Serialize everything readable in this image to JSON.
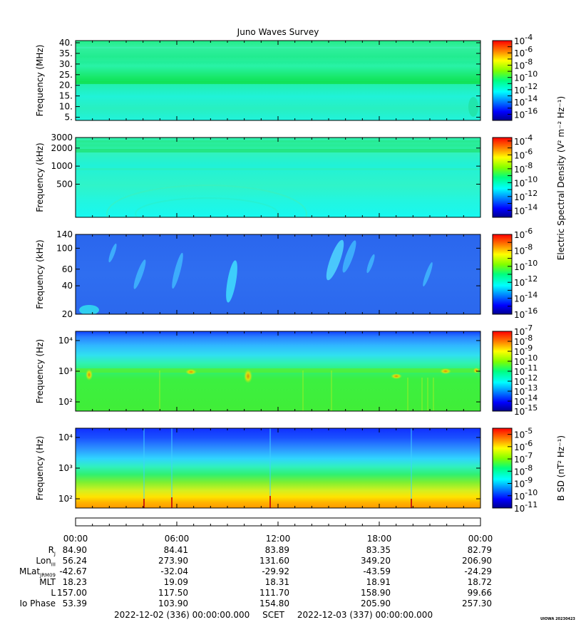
{
  "title": "Juno Waves Survey",
  "time_ticks": [
    "00:00",
    "06:00",
    "12:00",
    "18:00",
    "00:00"
  ],
  "ephemeris": {
    "labels": [
      {
        "main": "R",
        "sub": "J"
      },
      {
        "main": "Lon",
        "sub": "III"
      },
      {
        "main": "MLat",
        "sub": "JRM09"
      },
      {
        "main": "MLT",
        "sub": ""
      },
      {
        "main": "L",
        "sub": ""
      },
      {
        "main": "Io Phase",
        "sub": ""
      }
    ],
    "rows": [
      [
        "84.90",
        "84.41",
        "83.89",
        "83.35",
        "82.79"
      ],
      [
        "56.24",
        "273.90",
        "131.60",
        "349.20",
        "206.90"
      ],
      [
        "-42.67",
        "-32.04",
        "-29.92",
        "-43.59",
        "-24.29"
      ],
      [
        "18.23",
        "19.09",
        "18.31",
        "18.91",
        "18.72"
      ],
      [
        "157.00",
        "117.50",
        "111.70",
        "158.90",
        "99.66"
      ],
      [
        "53.39",
        "103.90",
        "154.80",
        "205.90",
        "257.30"
      ]
    ]
  },
  "footer": {
    "start": "2022-12-02 (336) 00:00:00.000",
    "scet": "SCET",
    "end": "2022-12-03 (337) 00:00:00.000"
  },
  "stamp": "UIOWA 20230423",
  "e_colorbar_label": "Electric Spectral Density",
  "e_colorbar_units": "(V² m⁻² Hz⁻¹)",
  "b_colorbar_label": "B SD",
  "b_colorbar_units": "(nT² Hz⁻¹)",
  "chart_data": [
    {
      "type": "heatmap",
      "name": "panel-hfr-high",
      "ylabel": "Frequency (MHz)",
      "y_scale": "linear",
      "ylim": [
        3.5,
        41
      ],
      "yticks": [
        5,
        10,
        15,
        20,
        25,
        30,
        35,
        40
      ],
      "ytick_labels": [
        "5.",
        "10.",
        "15.",
        "20.",
        "25.",
        "30.",
        "35.",
        "40."
      ],
      "colorbar": {
        "log10_range": [
          -17,
          -4
        ],
        "tick_exponents": [
          -16,
          -14,
          -12,
          -10,
          -8,
          -6,
          -4
        ]
      }
    },
    {
      "type": "heatmap",
      "name": "panel-hfr-low",
      "ylabel": "Frequency (kHz)",
      "y_scale": "log",
      "ylim": [
        140,
        3000
      ],
      "yticks": [
        500,
        1000,
        2000,
        3000
      ],
      "ytick_labels": [
        "500",
        "1000",
        "2000",
        "3000"
      ],
      "colorbar": {
        "log10_range": [
          -15,
          -3.5
        ],
        "tick_exponents": [
          -14,
          -12,
          -10,
          -8,
          -6,
          -4
        ]
      }
    },
    {
      "type": "heatmap",
      "name": "panel-lfr",
      "ylabel": "Frequency (kHz)",
      "y_scale": "log",
      "ylim": [
        20,
        140
      ],
      "yticks": [
        20,
        40,
        60,
        100,
        140
      ],
      "ytick_labels": [
        "20",
        "40",
        "60",
        "100",
        "140"
      ],
      "colorbar": {
        "log10_range": [
          -16,
          -6
        ],
        "tick_exponents": [
          -16,
          -14,
          -12,
          -10,
          -8,
          -6
        ]
      }
    },
    {
      "type": "heatmap",
      "name": "panel-e-lowfreq",
      "ylabel": "Frequency (Hz)",
      "y_scale": "log",
      "ylim": [
        50,
        20000
      ],
      "yticks": [
        100,
        1000,
        10000
      ],
      "ytick_labels": [
        "10²",
        "10³",
        "10⁴"
      ],
      "colorbar": {
        "log10_range": [
          -15,
          -7
        ],
        "tick_exponents": [
          -15,
          -14,
          -13,
          -12,
          -11,
          -10,
          -9,
          -8,
          -7
        ]
      }
    },
    {
      "type": "heatmap",
      "name": "panel-b-lowfreq",
      "ylabel": "Frequency (Hz)",
      "y_scale": "log",
      "ylim": [
        50,
        20000
      ],
      "yticks": [
        100,
        1000,
        10000
      ],
      "ytick_labels": [
        "10²",
        "10³",
        "10⁴"
      ],
      "colorbar": {
        "log10_range": [
          -11,
          -4.5
        ],
        "tick_exponents": [
          -11,
          -10,
          -9,
          -8,
          -7,
          -6,
          -5
        ]
      }
    }
  ]
}
